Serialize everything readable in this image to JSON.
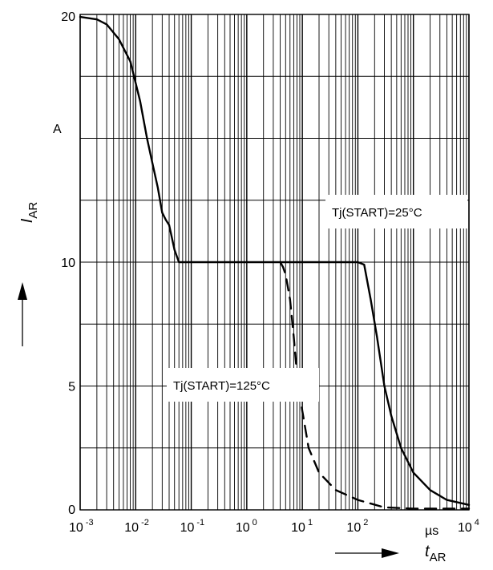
{
  "chart_data": {
    "type": "line",
    "x_scale": "log",
    "y_scale": "linear",
    "xlim": [
      0.001,
      10000
    ],
    "ylim": [
      0,
      20
    ],
    "grid": true,
    "y_ticks": [
      {
        "value": 0,
        "label": "0"
      },
      {
        "value": 5,
        "label": "5"
      },
      {
        "value": 10,
        "label": "10"
      },
      {
        "value": 20,
        "label": "20"
      }
    ],
    "y_unit": "A",
    "x_ticks": [
      {
        "value": 0.001,
        "base": "10",
        "exp": "-3"
      },
      {
        "value": 0.01,
        "base": "10",
        "exp": "-2"
      },
      {
        "value": 0.1,
        "base": "10",
        "exp": "-1"
      },
      {
        "value": 1,
        "base": "10",
        "exp": "0"
      },
      {
        "value": 10,
        "base": "10",
        "exp": "1"
      },
      {
        "value": 100,
        "base": "10",
        "exp": "2"
      },
      {
        "value": 10000,
        "base": "10",
        "exp": "4"
      }
    ],
    "x_unit": "µs",
    "ylabel": {
      "main": "I",
      "sub": "AR"
    },
    "xlabel": {
      "main": "t",
      "sub": "AR"
    },
    "series": [
      {
        "name": "Tj(START)=25°C",
        "style": "solid",
        "x": [
          0.001,
          0.002,
          0.003,
          0.005,
          0.008,
          0.012,
          0.016,
          0.02,
          0.025,
          0.03,
          0.035,
          0.04,
          0.05,
          0.06,
          0.1,
          1,
          10,
          100,
          130,
          170,
          220,
          300,
          400,
          600,
          1000,
          2000,
          4000,
          10000
        ],
        "y": [
          19.9,
          19.8,
          19.6,
          19.0,
          18.1,
          16.5,
          15.0,
          14.0,
          13.0,
          12.0,
          11.7,
          11.5,
          10.5,
          10.0,
          10.0,
          10.0,
          10.0,
          10.0,
          9.9,
          8.5,
          7.0,
          5.0,
          3.8,
          2.5,
          1.5,
          0.8,
          0.4,
          0.2
        ]
      },
      {
        "name": "Tj(START)=125°C",
        "style": "dashed",
        "x": [
          4,
          4.5,
          5,
          6,
          7,
          8,
          10,
          13,
          20,
          40,
          100,
          300,
          1000,
          10000
        ],
        "y": [
          10.0,
          9.8,
          9.5,
          8.5,
          7.0,
          5.5,
          4.0,
          2.5,
          1.5,
          0.8,
          0.4,
          0.1,
          0.05,
          0.05
        ]
      }
    ],
    "annotations": [
      {
        "text": "Tj(START)=25°C",
        "series": 0
      },
      {
        "text": "Tj(START)=125°C",
        "series": 1
      }
    ]
  }
}
